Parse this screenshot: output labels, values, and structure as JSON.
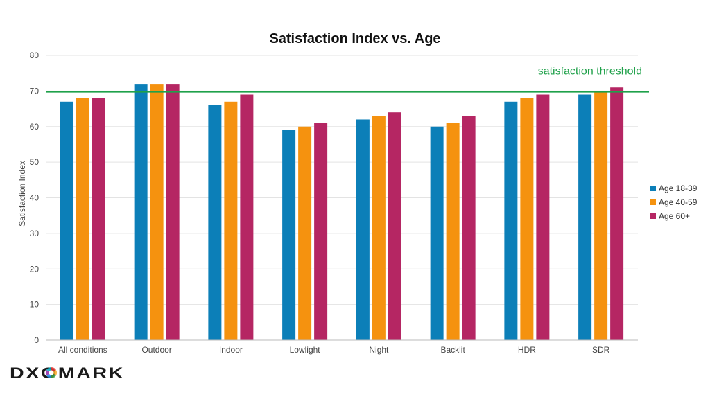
{
  "brand": {
    "logo_text": "DXOMARK"
  },
  "colors": {
    "threshold": "#1fa14a",
    "grid": "#e3e3e3",
    "axis": "#bbbbbb"
  },
  "chart_data": {
    "type": "bar",
    "title": "Satisfaction Index vs. Age",
    "xlabel": "",
    "ylabel": "Satisfaction Index",
    "ylim": [
      0,
      80
    ],
    "yticks": [
      0,
      10,
      20,
      30,
      40,
      50,
      60,
      70,
      80
    ],
    "grid": true,
    "legend_position": "right",
    "categories": [
      "All conditions",
      "Outdoor",
      "Indoor",
      "Lowlight",
      "Night",
      "Backlit",
      "HDR",
      "SDR"
    ],
    "series": [
      {
        "name": "Age 18-39",
        "color": "#0c7fb8",
        "values": [
          67,
          72,
          66,
          59,
          62,
          60,
          67,
          69
        ]
      },
      {
        "name": "Age 40-59",
        "color": "#f5920f",
        "values": [
          68,
          72,
          67,
          60,
          63,
          61,
          68,
          70
        ]
      },
      {
        "name": "Age 60+",
        "color": "#b52663",
        "values": [
          68,
          72,
          69,
          61,
          64,
          63,
          69,
          71
        ]
      }
    ],
    "threshold": {
      "value": 69.8,
      "label": "satisfaction threshold"
    }
  }
}
